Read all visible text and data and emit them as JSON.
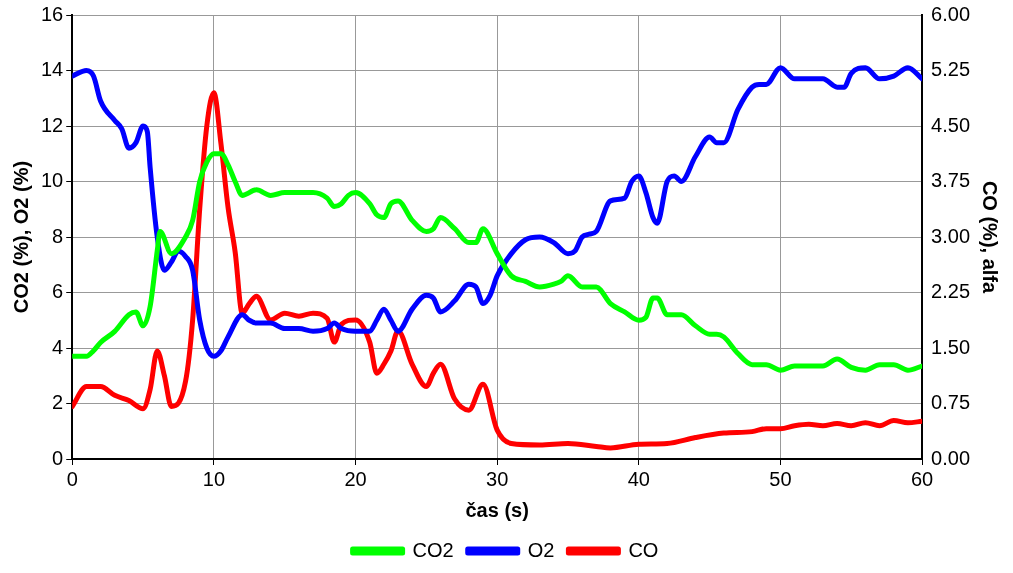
{
  "chart_data": {
    "type": "line",
    "xlabel": "čas (s)",
    "ylabel": "CO2 (%), O2 (%)",
    "y2label": "CO (%), alfa",
    "xlim": [
      0,
      60
    ],
    "xticks": [
      0,
      10,
      20,
      30,
      40,
      50,
      60
    ],
    "ylim": [
      0,
      16
    ],
    "yticks": [
      0,
      2,
      4,
      6,
      8,
      10,
      12,
      14,
      16
    ],
    "y2lim": [
      0,
      6
    ],
    "y2ticks": [
      {
        "value": 0,
        "label": "0.00"
      },
      {
        "value": 0.75,
        "label": "0.75"
      },
      {
        "value": 1.5,
        "label": "1.50"
      },
      {
        "value": 2.25,
        "label": "2.25"
      },
      {
        "value": 3,
        "label": "3.00"
      },
      {
        "value": 3.75,
        "label": "3.75"
      },
      {
        "value": 4.5,
        "label": "4.50"
      },
      {
        "value": 5.25,
        "label": "5.25"
      },
      {
        "value": 6,
        "label": "6.00"
      }
    ],
    "grid": true,
    "legend": "bottom",
    "marker": "none",
    "line_style": "solid",
    "series": [
      {
        "name": "CO2",
        "color": "#00ff00",
        "x": [
          0,
          1,
          1.5,
          2,
          3,
          4,
          4.5,
          5,
          5.5,
          6,
          6.2,
          7,
          8,
          8.5,
          9,
          9.5,
          10,
          10.5,
          11,
          11.5,
          12,
          13,
          14,
          15,
          17,
          18,
          18.5,
          19,
          19.5,
          20,
          21,
          21.5,
          22,
          22.5,
          23,
          24,
          25,
          25.5,
          26,
          27,
          28,
          28.5,
          29,
          30,
          31,
          32,
          33,
          34,
          34.5,
          35,
          36,
          37,
          38,
          39,
          40,
          40.5,
          41,
          41.3,
          42,
          43,
          44,
          45,
          45.5,
          46,
          47,
          48,
          49,
          50,
          51,
          53,
          54,
          55,
          56,
          57,
          58,
          59,
          60
        ],
        "values": [
          3.7,
          3.7,
          3.9,
          4.2,
          4.6,
          5.2,
          5.3,
          4.8,
          5.5,
          7.5,
          8.2,
          7.4,
          8,
          8.6,
          10,
          10.7,
          11,
          11,
          10.6,
          10,
          9.5,
          9.7,
          9.5,
          9.6,
          9.6,
          9.4,
          9.1,
          9.2,
          9.5,
          9.6,
          9.2,
          8.8,
          8.7,
          9.2,
          9.3,
          8.6,
          8.2,
          8.3,
          8.7,
          8.3,
          7.8,
          7.8,
          8.3,
          7.4,
          6.6,
          6.4,
          6.2,
          6.3,
          6.4,
          6.6,
          6.2,
          6.2,
          5.6,
          5.3,
          5,
          5.1,
          5.8,
          5.8,
          5.2,
          5.2,
          4.8,
          4.5,
          4.5,
          4.4,
          3.8,
          3.4,
          3.4,
          3.2,
          3.35,
          3.35,
          3.6,
          3.3,
          3.2,
          3.4,
          3.4,
          3.2,
          3.35
        ]
      },
      {
        "name": "O2",
        "color": "#0000ff",
        "x": [
          0,
          1,
          1.5,
          2,
          3,
          3.5,
          4,
          4.5,
          5,
          5.3,
          5.5,
          6,
          6.5,
          7,
          7.5,
          8,
          8.5,
          9,
          9.5,
          10,
          10.5,
          11,
          12,
          12.5,
          13,
          14,
          15,
          16,
          17,
          18,
          18.5,
          19,
          20,
          21,
          21.5,
          22,
          22.5,
          23,
          24,
          25,
          25.5,
          26,
          27,
          28,
          28.5,
          29,
          29.5,
          30,
          31,
          32,
          33,
          34,
          35,
          35.5,
          36,
          36.5,
          37,
          38,
          39,
          39.5,
          40,
          40.5,
          41,
          41.3,
          42,
          42.5,
          43,
          44,
          45,
          45.5,
          46,
          47,
          48,
          48.5,
          49,
          50,
          51,
          52,
          53,
          54,
          54.5,
          55,
          56,
          57,
          58,
          59,
          60
        ],
        "values": [
          13.8,
          14,
          13.8,
          12.9,
          12.2,
          11.9,
          11.2,
          11.4,
          12,
          11.8,
          10.5,
          8,
          6.8,
          7.1,
          7.5,
          7.3,
          6.8,
          5,
          4,
          3.7,
          3.9,
          4.4,
          5.2,
          5,
          4.9,
          4.9,
          4.7,
          4.7,
          4.6,
          4.7,
          4.9,
          4.7,
          4.6,
          4.6,
          5,
          5.4,
          5,
          4.6,
          5.4,
          5.9,
          5.8,
          5.3,
          5.7,
          6.3,
          6.2,
          5.6,
          5.9,
          6.6,
          7.4,
          7.9,
          8,
          7.8,
          7.4,
          7.5,
          8,
          8.1,
          8.2,
          9.3,
          9.4,
          10,
          10.2,
          9.6,
          8.7,
          8.5,
          10,
          10.2,
          10,
          10.9,
          11.6,
          11.4,
          11.4,
          12.6,
          13.4,
          13.5,
          13.5,
          14.1,
          13.7,
          13.7,
          13.7,
          13.4,
          13.4,
          13.9,
          14.1,
          13.7,
          13.8,
          14.1,
          13.7
        ]
      },
      {
        "name": "CO",
        "color": "#ff0000",
        "axis": "y2",
        "x": [
          0,
          1,
          2,
          3,
          4,
          5,
          5.5,
          6,
          6.5,
          7,
          8,
          8.5,
          9,
          9.5,
          10,
          10.5,
          11,
          11.5,
          12,
          12.5,
          13,
          14,
          15,
          16,
          17,
          18,
          18.5,
          19,
          20,
          21,
          21.5,
          22,
          22.5,
          23,
          24,
          25,
          25.5,
          26,
          27,
          28,
          29,
          30,
          31,
          33,
          35,
          37,
          38,
          40,
          42,
          44,
          46,
          48,
          49,
          50,
          51,
          52,
          53,
          54,
          55,
          56,
          57,
          58,
          59,
          60
        ],
        "values": [
          0.71,
          0.98,
          0.98,
          0.86,
          0.79,
          0.68,
          0.94,
          1.46,
          1.13,
          0.71,
          1.05,
          1.88,
          3.38,
          4.5,
          4.95,
          4.26,
          3.4,
          2.8,
          1.97,
          2.1,
          2.2,
          1.88,
          1.97,
          1.93,
          1.97,
          1.9,
          1.58,
          1.82,
          1.88,
          1.58,
          1.16,
          1.28,
          1.46,
          1.73,
          1.28,
          0.98,
          1.16,
          1.28,
          0.81,
          0.66,
          1.01,
          0.39,
          0.21,
          0.19,
          0.21,
          0.17,
          0.15,
          0.2,
          0.21,
          0.29,
          0.35,
          0.37,
          0.41,
          0.41,
          0.45,
          0.47,
          0.45,
          0.48,
          0.45,
          0.49,
          0.45,
          0.52,
          0.49,
          0.51
        ]
      }
    ]
  }
}
